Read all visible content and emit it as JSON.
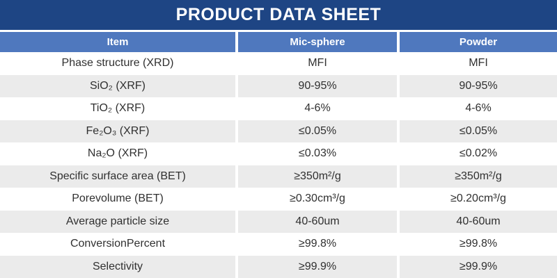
{
  "banner": {
    "title": "PRODUCT DATA SHEET"
  },
  "table": {
    "columns": [
      "Item",
      "Mic-sphere",
      "Powder"
    ],
    "rows": [
      {
        "item": "Phase structure (XRD)",
        "mic_sphere": "MFI",
        "powder": "MFI"
      },
      {
        "item": "SiO₂ (XRF)",
        "mic_sphere": "90-95%",
        "powder": "90-95%"
      },
      {
        "item": "TiO₂ (XRF)",
        "mic_sphere": "4-6%",
        "powder": "4-6%"
      },
      {
        "item": "Fe₂O₃ (XRF)",
        "mic_sphere": "≤0.05%",
        "powder": "≤0.05%"
      },
      {
        "item": "Na₂O (XRF)",
        "mic_sphere": "≤0.03%",
        "powder": "≤0.02%"
      },
      {
        "item": "Specific surface area (BET)",
        "mic_sphere": "≥350m²/g",
        "powder": "≥350m²/g"
      },
      {
        "item": "Porevolume (BET)",
        "mic_sphere": "≥0.30cm³/g",
        "powder": "≥0.20cm³/g"
      },
      {
        "item": "Average particle size",
        "mic_sphere": "40-60um",
        "powder": "40-60um"
      },
      {
        "item": "ConversionPercent",
        "mic_sphere": "≥99.8%",
        "powder": "≥99.8%"
      },
      {
        "item": "Selectivity",
        "mic_sphere": "≥99.9%",
        "powder": "≥99.9%"
      }
    ]
  },
  "colors": {
    "banner_bg": "#1E4584",
    "header_bg": "#4F78BE",
    "row_alt_bg": "#EBEBEB",
    "row_bg": "#FFFFFF",
    "text": "#303030",
    "header_text": "#FFFFFF"
  }
}
